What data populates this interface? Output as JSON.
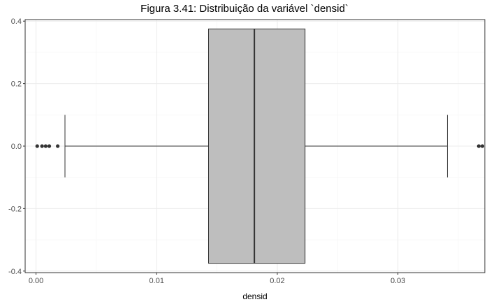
{
  "chart_data": {
    "type": "boxplot",
    "title": "Figura 3.41: Distribuição da variável `densid`",
    "xlabel": "densid",
    "ylabel": "",
    "xlim": [
      -0.0009,
      0.0372
    ],
    "ylim": [
      -0.405,
      0.405
    ],
    "x_ticks": [
      0.0,
      0.01,
      0.02,
      0.03
    ],
    "x_tick_labels": [
      "0.00",
      "0.01",
      "0.02",
      "0.03"
    ],
    "y_ticks": [
      -0.4,
      -0.2,
      0.0,
      0.2,
      0.4
    ],
    "y_tick_labels": [
      "-0.4",
      "-0.2",
      "0.0",
      "0.2",
      "0.4"
    ],
    "grid": true,
    "box": {
      "whisker_low": 0.0024,
      "q1": 0.0143,
      "median": 0.0181,
      "q3": 0.0223,
      "whisker_high": 0.0341,
      "y_center": 0.0,
      "half_height": 0.375,
      "whisker_cap_half": 0.1
    },
    "outliers": [
      0.0001,
      0.0005,
      0.0008,
      0.0011,
      0.0018,
      0.0367,
      0.037
    ],
    "colors": {
      "box_fill": "#bebebe",
      "line": "#333333",
      "outlier": "#333333",
      "grid_major": "#ebebeb",
      "grid_minor": "#f5f5f5",
      "panel_border": "#333333"
    }
  }
}
